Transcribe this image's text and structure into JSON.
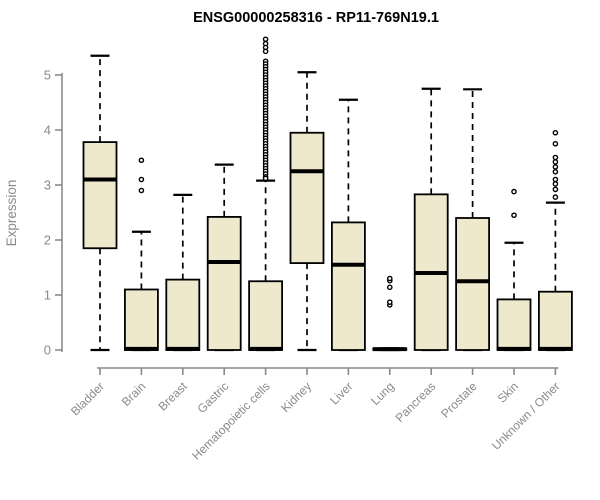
{
  "chart_data": {
    "type": "boxplot",
    "title": "ENSG00000258316 - RP11-769N19.1",
    "xlabel": "",
    "ylabel": "Expression",
    "ylim": [
      0,
      5.75
    ],
    "yticks": [
      0,
      1,
      2,
      3,
      4,
      5
    ],
    "grid": false,
    "legend": "none",
    "categories": [
      "Bladder",
      "Brain",
      "Breast",
      "Gastric",
      "Hematopoietic cells",
      "Kidney",
      "Liver",
      "Lung",
      "Pancreas",
      "Prostate",
      "Skin",
      "Unknown / Other"
    ],
    "series": [
      {
        "category": "Bladder",
        "whisker_low": 0,
        "q1": 1.85,
        "median": 3.1,
        "q3": 3.78,
        "whisker_high": 5.35,
        "outliers": []
      },
      {
        "category": "Brain",
        "whisker_low": 0,
        "q1": 0,
        "median": 0.02,
        "q3": 1.1,
        "whisker_high": 2.15,
        "outliers": [
          2.9,
          3.1,
          3.45
        ]
      },
      {
        "category": "Breast",
        "whisker_low": 0,
        "q1": 0,
        "median": 0.02,
        "q3": 1.28,
        "whisker_high": 2.82,
        "outliers": []
      },
      {
        "category": "Gastric",
        "whisker_low": 0,
        "q1": 0,
        "median": 1.6,
        "q3": 2.42,
        "whisker_high": 3.37,
        "outliers": []
      },
      {
        "category": "Hematopoietic cells",
        "whisker_low": 0,
        "q1": 0,
        "median": 0.02,
        "q3": 1.25,
        "whisker_high": 3.08,
        "outliers": [
          5.65,
          5.57,
          5.5,
          5.43,
          5.25,
          5.2,
          5.15,
          5.1,
          5.05,
          5.0,
          4.95,
          4.9,
          4.85,
          4.8,
          4.75,
          4.7,
          4.65,
          4.6,
          4.55,
          4.5,
          4.45,
          4.4,
          4.35,
          4.3,
          4.25,
          4.2,
          4.15,
          4.1,
          4.05,
          4.0,
          3.95,
          3.9,
          3.85,
          3.8,
          3.75,
          3.7,
          3.65,
          3.6,
          3.55,
          3.5,
          3.45,
          3.4,
          3.35,
          3.3,
          3.25,
          3.2,
          3.15,
          3.12
        ]
      },
      {
        "category": "Kidney",
        "whisker_low": 0,
        "q1": 1.58,
        "median": 3.25,
        "q3": 3.95,
        "whisker_high": 5.05,
        "outliers": []
      },
      {
        "category": "Liver",
        "whisker_low": 0,
        "q1": 0,
        "median": 1.55,
        "q3": 2.32,
        "whisker_high": 4.55,
        "outliers": []
      },
      {
        "category": "Lung",
        "whisker_low": 0,
        "q1": 0,
        "median": 0.015,
        "q3": 0.03,
        "whisker_high": 0.03,
        "outliers": [
          0.82,
          0.87,
          1.14,
          1.26,
          1.3
        ]
      },
      {
        "category": "Pancreas",
        "whisker_low": 0,
        "q1": 0,
        "median": 1.4,
        "q3": 2.83,
        "whisker_high": 4.75,
        "outliers": []
      },
      {
        "category": "Prostate",
        "whisker_low": 0,
        "q1": 0,
        "median": 1.25,
        "q3": 2.4,
        "whisker_high": 4.74,
        "outliers": []
      },
      {
        "category": "Skin",
        "whisker_low": 0,
        "q1": 0,
        "median": 0.02,
        "q3": 0.92,
        "whisker_high": 1.95,
        "outliers": [
          2.45,
          2.88
        ]
      },
      {
        "category": "Unknown / Other",
        "whisker_low": 0,
        "q1": 0,
        "median": 0.02,
        "q3": 1.06,
        "whisker_high": 2.68,
        "outliers": [
          2.78,
          2.92,
          3.02,
          3.1,
          3.24,
          3.33,
          3.42,
          3.5,
          3.75,
          3.95
        ]
      }
    ],
    "colors": {
      "box_fill": "#EEE8CD",
      "box_border": "#000000",
      "median": "#000000",
      "whisker": "#000000",
      "outlier_stroke": "#000000",
      "axis": "#8a8a8a",
      "title": "#000000",
      "background": "#ffffff"
    }
  }
}
